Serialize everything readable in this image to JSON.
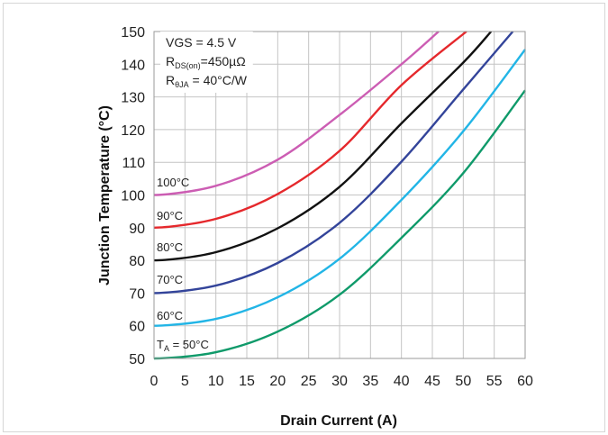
{
  "chart_data": {
    "type": "line",
    "title": "",
    "xlabel": "Drain Current (A)",
    "ylabel": "Junction Temperature (°C)",
    "xlim": [
      0,
      60
    ],
    "ylim": [
      50,
      150
    ],
    "xticks": [
      0,
      5,
      10,
      15,
      20,
      25,
      30,
      35,
      40,
      45,
      50,
      55,
      60
    ],
    "yticks": [
      50,
      60,
      70,
      80,
      90,
      100,
      110,
      120,
      130,
      140,
      150
    ],
    "grid": true,
    "annotation": {
      "line1": "VGS = 4.5 V",
      "line2_main": "R",
      "line2_sub": "DS(on)",
      "line2_rest": "=450µΩ",
      "line3_main": "R",
      "line3_sub": "θJA",
      "line3_rest": " = 40°C/W"
    },
    "series": [
      {
        "name": "T",
        "name_sub": "A",
        "name_rest": " = 50°C",
        "color": "#0f9a6a",
        "x": [
          0,
          10,
          20,
          30,
          40,
          50,
          60
        ],
        "y": [
          50,
          51.9,
          58.2,
          69.5,
          86.9,
          106.7,
          132
        ]
      },
      {
        "name": "60°C",
        "color": "#22b5e6",
        "x": [
          0,
          10,
          20,
          30,
          40,
          50,
          60
        ],
        "y": [
          60,
          62.1,
          68.7,
          80.5,
          98.5,
          119.5,
          144.5
        ]
      },
      {
        "name": "70°C",
        "color": "#33449a",
        "x": [
          0,
          10,
          20,
          30,
          40,
          50,
          58
        ],
        "y": [
          70,
          72.3,
          79.2,
          91.5,
          110.2,
          132.3,
          150
        ]
      },
      {
        "name": "80°C",
        "color": "#111111",
        "x": [
          0,
          10,
          20,
          30,
          40,
          50,
          54.5
        ],
        "y": [
          80,
          82.5,
          89.8,
          102.5,
          121.9,
          140.5,
          150
        ]
      },
      {
        "name": "90°C",
        "color": "#e5282c",
        "x": [
          0,
          10,
          20,
          30,
          40,
          50.5
        ],
        "y": [
          90,
          92.7,
          100.3,
          113.5,
          133.6,
          150
        ]
      },
      {
        "name": "100°C",
        "color": "#cc5db3",
        "x": [
          0,
          10,
          20,
          30,
          40,
          46
        ],
        "y": [
          100,
          102.8,
          110.8,
          124.5,
          140,
          150
        ]
      }
    ]
  }
}
